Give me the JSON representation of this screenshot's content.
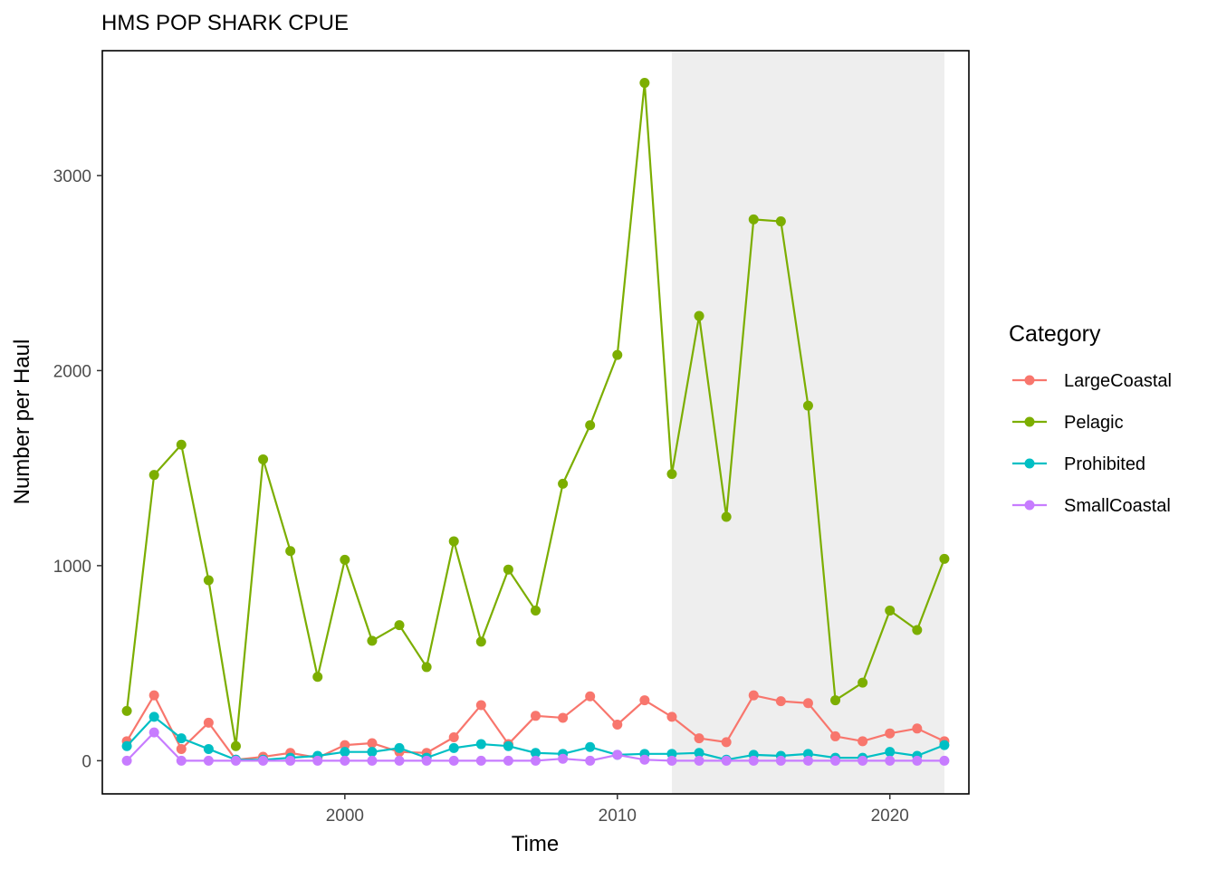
{
  "chart_data": {
    "type": "line",
    "title": "HMS POP SHARK CPUE",
    "xlabel": "Time",
    "ylabel": "Number per Haul",
    "x": [
      1992,
      1993,
      1994,
      1995,
      1996,
      1997,
      1998,
      1999,
      2000,
      2001,
      2002,
      2003,
      2004,
      2005,
      2006,
      2007,
      2008,
      2009,
      2010,
      2011,
      2012,
      2013,
      2014,
      2015,
      2016,
      2017,
      2018,
      2019,
      2020,
      2021,
      2022
    ],
    "xlim": [
      1991.1,
      2022.9
    ],
    "ylim": [
      -170,
      3640
    ],
    "xticks": [
      2000,
      2010,
      2020
    ],
    "yticks": [
      0,
      1000,
      2000,
      3000
    ],
    "grid": false,
    "shaded_region": {
      "x_start": 2012,
      "x_end": 2022,
      "color": "#eeeeee"
    },
    "legend": {
      "title": "Category",
      "position": "right"
    },
    "series": [
      {
        "name": "LargeCoastal",
        "color": "#f8766d",
        "values": [
          100,
          335,
          60,
          195,
          5,
          20,
          40,
          15,
          80,
          90,
          45,
          40,
          120,
          285,
          85,
          230,
          220,
          330,
          185,
          310,
          225,
          115,
          95,
          335,
          305,
          295,
          125,
          100,
          140,
          165,
          100
        ]
      },
      {
        "name": "Pelagic",
        "color": "#7cae00",
        "values": [
          255,
          1465,
          1620,
          925,
          75,
          1545,
          1075,
          430,
          1030,
          615,
          695,
          480,
          1125,
          610,
          980,
          770,
          1420,
          1720,
          2080,
          3475,
          1470,
          2280,
          1250,
          2775,
          2765,
          1820,
          310,
          400,
          770,
          670,
          1035
        ]
      },
      {
        "name": "Prohibited",
        "color": "#00bfc4",
        "values": [
          75,
          225,
          115,
          60,
          5,
          5,
          15,
          25,
          45,
          45,
          65,
          15,
          65,
          85,
          75,
          40,
          35,
          70,
          30,
          35,
          35,
          40,
          5,
          30,
          25,
          35,
          15,
          15,
          45,
          25,
          80
        ]
      },
      {
        "name": "SmallCoastal",
        "color": "#c77cff",
        "values": [
          0,
          145,
          0,
          0,
          0,
          0,
          0,
          0,
          0,
          0,
          0,
          0,
          0,
          0,
          0,
          0,
          10,
          0,
          30,
          5,
          0,
          0,
          0,
          0,
          0,
          0,
          0,
          0,
          0,
          0,
          0
        ]
      }
    ]
  }
}
